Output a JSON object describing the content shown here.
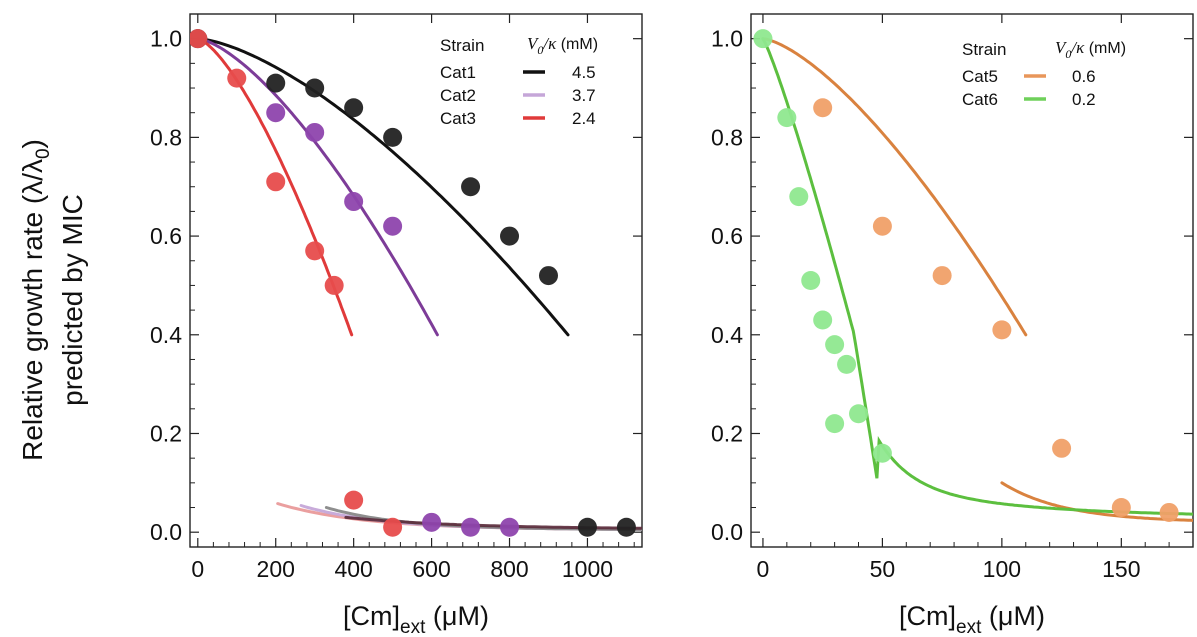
{
  "figure": {
    "ylabel_line1": "Relative growth rate (λ/λ",
    "ylabel_sub": "0",
    "ylabel_close": ")",
    "ylabel_line2": "predicted by MIC"
  },
  "chart_data": [
    {
      "type": "scatter",
      "xlabel_main": "[Cm]",
      "xlabel_sub": "ext",
      "xlabel_unit": " (μM)",
      "xlim": [
        -20,
        1140
      ],
      "ylim": [
        -0.03,
        1.05
      ],
      "xticks": [
        0,
        200,
        400,
        600,
        800,
        1000
      ],
      "yticks": [
        "0.0",
        "0.2",
        "0.4",
        "0.6",
        "0.8",
        "1.0"
      ],
      "legend": {
        "placement": "top-right",
        "header_strain": "Strain",
        "header_v": "V",
        "header_v_sub": "0",
        "header_v_rest": "/κ",
        "header_unit": " (mM)"
      },
      "series": [
        {
          "name": "Cat1",
          "color": "#111111",
          "value_label": "4.5",
          "param": 4.5,
          "cmax": 950,
          "points": [
            [
              0,
              1.0
            ],
            [
              200,
              0.91
            ],
            [
              300,
              0.9
            ],
            [
              400,
              0.86
            ],
            [
              500,
              0.8
            ],
            [
              700,
              0.7
            ],
            [
              800,
              0.6
            ],
            [
              900,
              0.52
            ],
            [
              1000,
              0.01
            ],
            [
              1100,
              0.01
            ]
          ]
        },
        {
          "name": "Cat2",
          "color": "#7d3c98",
          "legend_color": "#c5a6d8",
          "value_label": "3.7",
          "param": 3.7,
          "cmax": 615,
          "points": [
            [
              200,
              0.85
            ],
            [
              300,
              0.81
            ],
            [
              400,
              0.67
            ],
            [
              500,
              0.62
            ],
            [
              600,
              0.02
            ],
            [
              700,
              0.01
            ],
            [
              800,
              0.01
            ]
          ]
        },
        {
          "name": "Cat3",
          "color": "#e03a3a",
          "value_label": "2.4",
          "param": 2.4,
          "cmax": 395,
          "points": [
            [
              0,
              1.0
            ],
            [
              100,
              0.92
            ],
            [
              200,
              0.71
            ],
            [
              300,
              0.57
            ],
            [
              350,
              0.5
            ],
            [
              400,
              0.065
            ],
            [
              500,
              0.01
            ]
          ]
        }
      ]
    },
    {
      "type": "scatter",
      "xlabel_main": "[Cm]",
      "xlabel_sub": "ext",
      "xlabel_unit": " (μM)",
      "xlim": [
        -5,
        180
      ],
      "ylim": [
        -0.03,
        1.05
      ],
      "xticks": [
        0,
        50,
        100,
        150
      ],
      "yticks": [
        "0.0",
        "0.2",
        "0.4",
        "0.6",
        "0.8",
        "1.0"
      ],
      "legend": {
        "placement": "top-right",
        "header_strain": "Strain",
        "header_v": "V",
        "header_v_sub": "0",
        "header_v_rest": "/κ",
        "header_unit": " (mM)"
      },
      "series": [
        {
          "name": "Cat5",
          "color": "#e8965a",
          "value_label": "0.6",
          "param": 0.6,
          "points": [
            [
              25,
              0.86
            ],
            [
              50,
              0.62
            ],
            [
              75,
              0.52
            ],
            [
              100,
              0.41
            ],
            [
              125,
              0.17
            ],
            [
              150,
              0.05
            ],
            [
              170,
              0.04
            ]
          ]
        },
        {
          "name": "Cat6",
          "color": "#7ee07e",
          "value_label": "0.2",
          "param": 0.2,
          "points": [
            [
              0,
              1.0
            ],
            [
              10,
              0.84
            ],
            [
              15,
              0.68
            ],
            [
              20,
              0.51
            ],
            [
              25,
              0.43
            ],
            [
              30,
              0.38
            ],
            [
              35,
              0.34
            ],
            [
              30,
              0.22
            ],
            [
              40,
              0.24
            ],
            [
              50,
              0.16
            ]
          ]
        }
      ]
    }
  ]
}
